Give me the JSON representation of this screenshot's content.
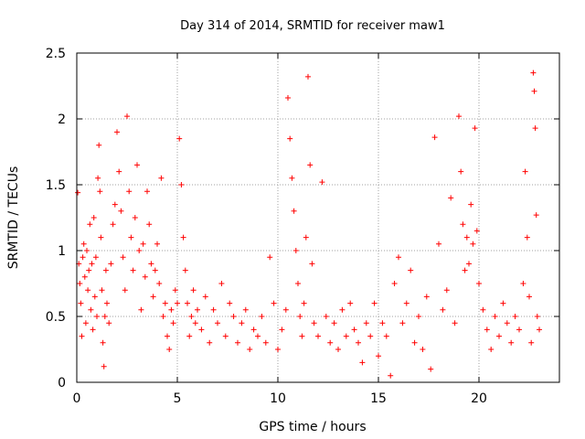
{
  "chart_data": {
    "type": "scatter",
    "title": "Day 314 of 2014, SRMTID for receiver maw1",
    "xlabel": "GPS time / hours",
    "ylabel": "SRMTID / TECUs",
    "xlim": [
      0,
      24
    ],
    "ylim": [
      0,
      2.5
    ],
    "x_ticks": [
      0,
      5,
      10,
      15,
      20
    ],
    "x_tick_labels": [
      "0",
      "5",
      "10",
      "15",
      "20"
    ],
    "y_ticks": [
      0,
      0.5,
      1,
      1.5,
      2,
      2.5
    ],
    "y_tick_labels": [
      "0",
      "0.5",
      "1",
      "1.5",
      "2",
      "2.5"
    ],
    "grid": true,
    "marker": "+",
    "color": "#ff0000",
    "series": [
      {
        "name": "SRMTID",
        "points": [
          [
            0.05,
            1.44
          ],
          [
            0.1,
            0.9
          ],
          [
            0.15,
            0.75
          ],
          [
            0.2,
            0.6
          ],
          [
            0.25,
            0.35
          ],
          [
            0.3,
            0.95
          ],
          [
            0.35,
            1.05
          ],
          [
            0.4,
            0.8
          ],
          [
            0.45,
            0.45
          ],
          [
            0.5,
            1.0
          ],
          [
            0.55,
            0.7
          ],
          [
            0.6,
            0.85
          ],
          [
            0.65,
            1.2
          ],
          [
            0.7,
            0.55
          ],
          [
            0.75,
            0.9
          ],
          [
            0.8,
            0.4
          ],
          [
            0.85,
            1.25
          ],
          [
            0.9,
            0.65
          ],
          [
            0.95,
            0.95
          ],
          [
            1.0,
            0.5
          ],
          [
            1.05,
            1.55
          ],
          [
            1.1,
            1.8
          ],
          [
            1.15,
            1.45
          ],
          [
            1.2,
            1.1
          ],
          [
            1.25,
            0.7
          ],
          [
            1.3,
            0.3
          ],
          [
            1.35,
            0.12
          ],
          [
            1.4,
            0.5
          ],
          [
            1.45,
            0.85
          ],
          [
            1.5,
            0.6
          ],
          [
            1.6,
            0.45
          ],
          [
            1.7,
            0.9
          ],
          [
            1.8,
            1.2
          ],
          [
            1.9,
            1.35
          ],
          [
            2.0,
            1.9
          ],
          [
            2.1,
            1.6
          ],
          [
            2.2,
            1.3
          ],
          [
            2.3,
            0.95
          ],
          [
            2.4,
            0.7
          ],
          [
            2.5,
            2.02
          ],
          [
            2.6,
            1.45
          ],
          [
            2.7,
            1.1
          ],
          [
            2.8,
            0.85
          ],
          [
            2.9,
            1.25
          ],
          [
            3.0,
            1.65
          ],
          [
            3.1,
            1.0
          ],
          [
            3.2,
            0.55
          ],
          [
            3.3,
            1.05
          ],
          [
            3.4,
            0.8
          ],
          [
            3.5,
            1.45
          ],
          [
            3.6,
            1.2
          ],
          [
            3.7,
            0.9
          ],
          [
            3.8,
            0.65
          ],
          [
            3.9,
            0.85
          ],
          [
            4.0,
            1.05
          ],
          [
            4.1,
            0.75
          ],
          [
            4.2,
            1.55
          ],
          [
            4.3,
            0.5
          ],
          [
            4.4,
            0.6
          ],
          [
            4.5,
            0.35
          ],
          [
            4.6,
            0.25
          ],
          [
            4.7,
            0.55
          ],
          [
            4.8,
            0.45
          ],
          [
            4.9,
            0.7
          ],
          [
            5.0,
            0.6
          ],
          [
            5.1,
            1.85
          ],
          [
            5.2,
            1.5
          ],
          [
            5.3,
            1.1
          ],
          [
            5.4,
            0.85
          ],
          [
            5.5,
            0.6
          ],
          [
            5.6,
            0.35
          ],
          [
            5.7,
            0.5
          ],
          [
            5.8,
            0.7
          ],
          [
            5.9,
            0.45
          ],
          [
            6.0,
            0.55
          ],
          [
            6.2,
            0.4
          ],
          [
            6.4,
            0.65
          ],
          [
            6.6,
            0.3
          ],
          [
            6.8,
            0.55
          ],
          [
            7.0,
            0.45
          ],
          [
            7.2,
            0.75
          ],
          [
            7.4,
            0.35
          ],
          [
            7.6,
            0.6
          ],
          [
            7.8,
            0.5
          ],
          [
            8.0,
            0.3
          ],
          [
            8.2,
            0.45
          ],
          [
            8.4,
            0.55
          ],
          [
            8.6,
            0.25
          ],
          [
            8.8,
            0.4
          ],
          [
            9.0,
            0.35
          ],
          [
            9.2,
            0.5
          ],
          [
            9.4,
            0.3
          ],
          [
            9.6,
            0.95
          ],
          [
            9.8,
            0.6
          ],
          [
            10.0,
            0.25
          ],
          [
            10.2,
            0.4
          ],
          [
            10.4,
            0.55
          ],
          [
            10.5,
            2.16
          ],
          [
            10.6,
            1.85
          ],
          [
            10.7,
            1.55
          ],
          [
            10.8,
            1.3
          ],
          [
            10.9,
            1.0
          ],
          [
            11.0,
            0.75
          ],
          [
            11.1,
            0.5
          ],
          [
            11.2,
            0.35
          ],
          [
            11.3,
            0.6
          ],
          [
            11.4,
            1.1
          ],
          [
            11.5,
            2.32
          ],
          [
            11.6,
            1.65
          ],
          [
            11.7,
            0.9
          ],
          [
            11.8,
            0.45
          ],
          [
            12.0,
            0.35
          ],
          [
            12.2,
            1.52
          ],
          [
            12.4,
            0.5
          ],
          [
            12.6,
            0.3
          ],
          [
            12.8,
            0.45
          ],
          [
            13.0,
            0.25
          ],
          [
            13.2,
            0.55
          ],
          [
            13.4,
            0.35
          ],
          [
            13.6,
            0.6
          ],
          [
            13.8,
            0.4
          ],
          [
            14.0,
            0.3
          ],
          [
            14.2,
            0.15
          ],
          [
            14.4,
            0.45
          ],
          [
            14.6,
            0.35
          ],
          [
            14.8,
            0.6
          ],
          [
            15.0,
            0.2
          ],
          [
            15.2,
            0.45
          ],
          [
            15.4,
            0.35
          ],
          [
            15.6,
            0.05
          ],
          [
            15.8,
            0.75
          ],
          [
            16.0,
            0.95
          ],
          [
            16.2,
            0.45
          ],
          [
            16.4,
            0.6
          ],
          [
            16.6,
            0.85
          ],
          [
            16.8,
            0.3
          ],
          [
            17.0,
            0.5
          ],
          [
            17.2,
            0.25
          ],
          [
            17.4,
            0.65
          ],
          [
            17.6,
            0.1
          ],
          [
            17.8,
            1.86
          ],
          [
            18.0,
            1.05
          ],
          [
            18.2,
            0.55
          ],
          [
            18.4,
            0.7
          ],
          [
            18.6,
            1.4
          ],
          [
            18.8,
            0.45
          ],
          [
            19.0,
            2.02
          ],
          [
            19.1,
            1.6
          ],
          [
            19.2,
            1.2
          ],
          [
            19.3,
            0.85
          ],
          [
            19.4,
            1.1
          ],
          [
            19.5,
            0.9
          ],
          [
            19.6,
            1.35
          ],
          [
            19.7,
            1.05
          ],
          [
            19.8,
            1.93
          ],
          [
            19.9,
            1.15
          ],
          [
            20.0,
            0.75
          ],
          [
            20.2,
            0.55
          ],
          [
            20.4,
            0.4
          ],
          [
            20.6,
            0.25
          ],
          [
            20.8,
            0.5
          ],
          [
            21.0,
            0.35
          ],
          [
            21.2,
            0.6
          ],
          [
            21.4,
            0.45
          ],
          [
            21.6,
            0.3
          ],
          [
            21.8,
            0.5
          ],
          [
            22.0,
            0.4
          ],
          [
            22.2,
            0.75
          ],
          [
            22.3,
            1.6
          ],
          [
            22.4,
            1.1
          ],
          [
            22.5,
            0.65
          ],
          [
            22.6,
            0.3
          ],
          [
            22.7,
            2.35
          ],
          [
            22.75,
            2.21
          ],
          [
            22.8,
            1.93
          ],
          [
            22.85,
            1.27
          ],
          [
            22.9,
            0.5
          ],
          [
            23.0,
            0.4
          ]
        ]
      }
    ]
  }
}
